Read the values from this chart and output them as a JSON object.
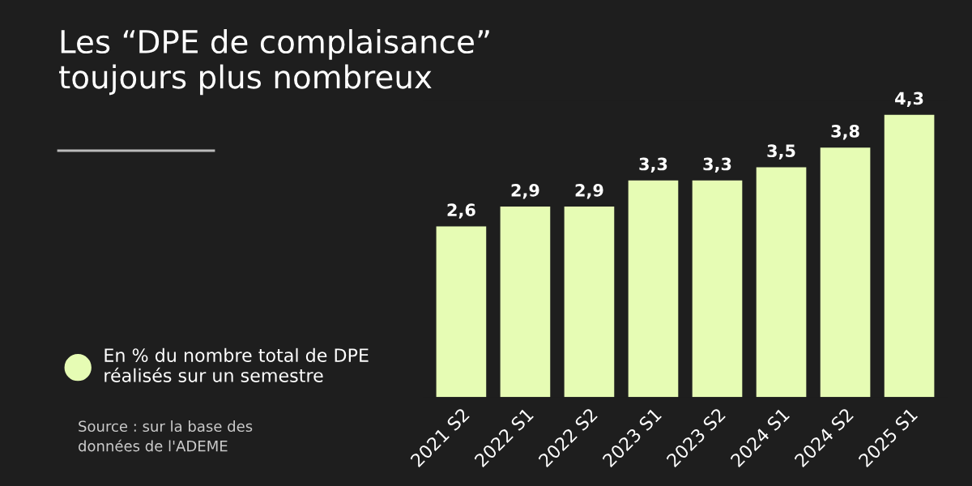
{
  "chart_data": {
    "type": "bar",
    "title": "Les “DPE de complaisance”\ntoujours plus nombreux",
    "categories": [
      "2021 S2",
      "2022 S1",
      "2022 S2",
      "2023 S1",
      "2023 S2",
      "2024 S1",
      "2024 S2",
      "2025 S1"
    ],
    "series": [
      {
        "name": "En % du nombre total de DPE\nréalisés sur un semestre",
        "color": "#e6fcb4",
        "values": [
          2.6,
          2.9,
          2.9,
          3.3,
          3.3,
          3.5,
          3.8,
          4.3
        ],
        "value_labels": [
          "2,6",
          "2,9",
          "2,9",
          "3,3",
          "3,3",
          "3,5",
          "3,8",
          "4,3"
        ]
      }
    ],
    "tick_labels": "x",
    "legend": "left",
    "annotations": [
      "Source : sur la base des\ndonnées de l'ADEME"
    ]
  }
}
